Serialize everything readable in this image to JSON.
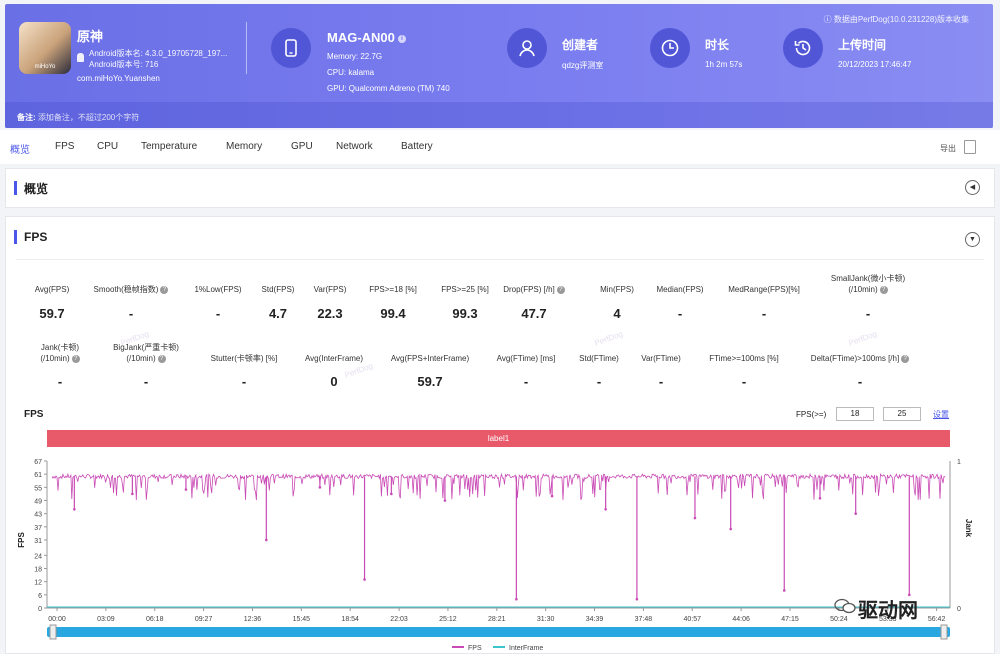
{
  "header": {
    "app_icon_text": "miHoYo",
    "app_name": "原神",
    "android_app_version": "Android版本名: 4.3.0_19705728_197...",
    "android_version_code": "Android版本号: 716",
    "package": "com.miHoYo.Yuanshen",
    "device_name": "MAG-AN00",
    "memory": "Memory: 22.7G",
    "cpu": "CPU: kalama",
    "gpu": "GPU: Qualcomm Adreno (TM) 740",
    "creator_title": "创建者",
    "creator": "qdzg评测室",
    "duration_title": "时长",
    "duration": "1h 2m 57s",
    "upload_title": "上传时间",
    "upload_time": "20/12/2023 17:46:47",
    "notice": "数据由PerfDog(10.0.231228)版本收集",
    "note_label": "备注:",
    "note_placeholder": "添加备注，不超过200个字符"
  },
  "tabs": [
    "概览",
    "FPS",
    "CPU",
    "Temperature",
    "Memory",
    "GPU",
    "Network",
    "Battery"
  ],
  "export_label": "导出",
  "overview_title": "概览",
  "fps_section": {
    "title": "FPS",
    "metrics_row1": [
      {
        "label": "Avg(FPS)",
        "value": "59.7",
        "help": false
      },
      {
        "label": "Smooth(稳帧指数)",
        "value": "-",
        "help": true
      },
      {
        "label": "1%Low(FPS)",
        "value": "-",
        "help": false
      },
      {
        "label": "Std(FPS)",
        "value": "4.7",
        "help": false
      },
      {
        "label": "Var(FPS)",
        "value": "22.3",
        "help": false
      },
      {
        "label": "FPS>=18 [%]",
        "value": "99.4",
        "help": false
      },
      {
        "label": "FPS>=25 [%]",
        "value": "99.3",
        "help": false
      },
      {
        "label": "Drop(FPS) [/h]",
        "value": "47.7",
        "help": true
      },
      {
        "label": "Min(FPS)",
        "value": "4",
        "help": false
      },
      {
        "label": "Median(FPS)",
        "value": "-",
        "help": false
      },
      {
        "label": "MedRange(FPS)[%]",
        "value": "-",
        "help": false
      },
      {
        "label": "SmallJank(微小卡顿)\n(/10min)",
        "value": "-",
        "help": true
      }
    ],
    "metrics_row2": [
      {
        "label": "Jank(卡顿)\n(/10min)",
        "value": "-",
        "help": true
      },
      {
        "label": "BigJank(严重卡顿)\n(/10min)",
        "value": "-",
        "help": true
      },
      {
        "label": "Stutter(卡顿率) [%]",
        "value": "-",
        "help": false
      },
      {
        "label": "Avg(InterFrame)",
        "value": "0",
        "help": false
      },
      {
        "label": "Avg(FPS+InterFrame)",
        "value": "59.7",
        "help": false
      },
      {
        "label": "Avg(FTime) [ms]",
        "value": "-",
        "help": false
      },
      {
        "label": "Std(FTime)",
        "value": "-",
        "help": false
      },
      {
        "label": "Var(FTime)",
        "value": "-",
        "help": false
      },
      {
        "label": "FTime>=100ms [%]",
        "value": "-",
        "help": false
      },
      {
        "label": "Delta(FTime)>100ms [/h]",
        "value": "-",
        "help": true
      }
    ],
    "watermark": "PerfDog",
    "fps_threshold_label": "FPS(>=)",
    "fps_threshold_1": "18",
    "fps_threshold_2": "25",
    "settings_label": "设置",
    "label_bar": "label1",
    "brand": "驱动网"
  },
  "chart_data": {
    "type": "line",
    "title": "FPS",
    "ylabel": "FPS",
    "y2label": "Jank",
    "y_ticks": [
      0,
      6,
      12,
      18,
      24,
      31,
      37,
      43,
      49,
      55,
      61,
      67
    ],
    "y2_ticks": [
      0,
      1
    ],
    "x_ticks": [
      "00:00",
      "03:09",
      "06:18",
      "09:27",
      "12:36",
      "15:45",
      "18:54",
      "22:03",
      "25:12",
      "28:21",
      "31:30",
      "34:39",
      "37:48",
      "40:57",
      "44:06",
      "47:15",
      "50:24",
      "53:33",
      "56:42"
    ],
    "ylim": [
      0,
      67
    ],
    "baseline": 60,
    "dips": [
      {
        "t": 0.025,
        "v": 45
      },
      {
        "t": 0.09,
        "v": 52
      },
      {
        "t": 0.15,
        "v": 54
      },
      {
        "t": 0.24,
        "v": 31
      },
      {
        "t": 0.3,
        "v": 55
      },
      {
        "t": 0.35,
        "v": 13
      },
      {
        "t": 0.38,
        "v": 52
      },
      {
        "t": 0.44,
        "v": 49
      },
      {
        "t": 0.52,
        "v": 4
      },
      {
        "t": 0.56,
        "v": 51
      },
      {
        "t": 0.62,
        "v": 45
      },
      {
        "t": 0.655,
        "v": 4
      },
      {
        "t": 0.72,
        "v": 41
      },
      {
        "t": 0.76,
        "v": 36
      },
      {
        "t": 0.82,
        "v": 8
      },
      {
        "t": 0.86,
        "v": 50
      },
      {
        "t": 0.9,
        "v": 43
      },
      {
        "t": 0.96,
        "v": 6
      }
    ],
    "series": [
      {
        "name": "FPS",
        "color": "#c94ab5"
      },
      {
        "name": "InterFrame",
        "color": "#3cc4cf"
      }
    ],
    "grid": false,
    "legend": "bottom"
  }
}
